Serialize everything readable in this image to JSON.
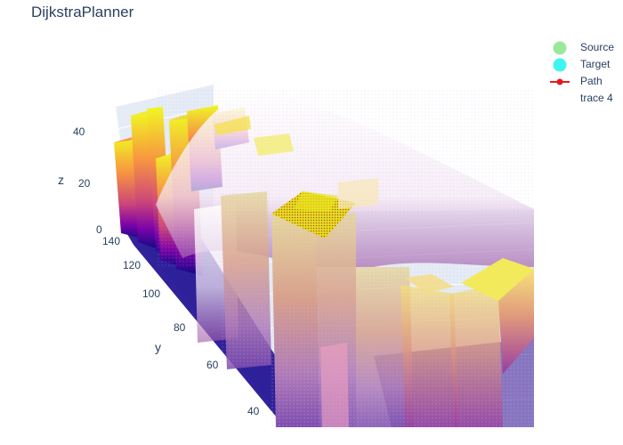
{
  "chart_data": {
    "type": "3d-bar-surface",
    "title": "DijkstraPlanner",
    "axes": {
      "z": {
        "label": "z",
        "ticks": [
          0,
          20,
          40
        ]
      },
      "y": {
        "label": "y",
        "ticks": [
          40,
          60,
          80,
          100,
          120,
          140
        ]
      }
    },
    "colorscale": "plasma",
    "legend_position": "top-right",
    "legend": [
      {
        "name": "Source",
        "symbol": "circle",
        "color": "#9be89b"
      },
      {
        "name": "Target",
        "symbol": "circle",
        "color": "#3ff5f0"
      },
      {
        "name": "Path",
        "symbol": "line-marker",
        "color": "#e8191d"
      },
      {
        "name": "trace 4",
        "symbol": "none",
        "color": ""
      }
    ]
  }
}
